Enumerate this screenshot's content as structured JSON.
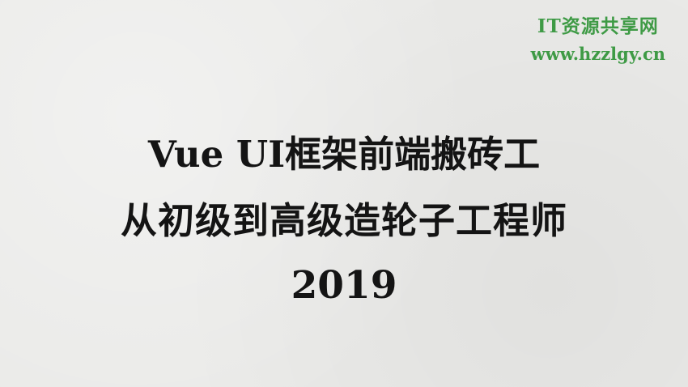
{
  "watermark": {
    "site_name": "IT资源共享网",
    "url": "www.hzzlgy.cn",
    "color": "#3e9a45"
  },
  "title": {
    "line1": "Vue UI框架前端搬砖工",
    "line2": "从初级到高级造轮子工程师",
    "line3": "2019"
  },
  "colors": {
    "background": "#eaeae8",
    "title_text": "#141414"
  }
}
